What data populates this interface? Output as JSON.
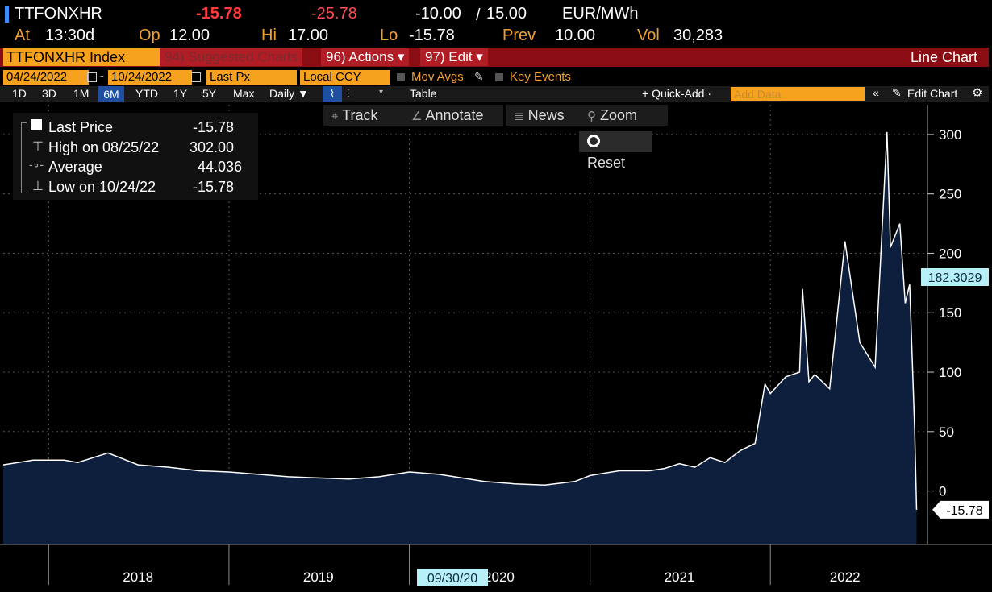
{
  "header": {
    "ticker": "TTFONXHR",
    "last": "-15.78",
    "change": "-25.78",
    "bid_ask": "-10.00",
    "ask": "15.00",
    "units": "EUR/MWh",
    "at_label": "At",
    "at_value": "13:30d",
    "op_label": "Op",
    "op_value": "12.00",
    "hi_label": "Hi",
    "hi_value": "17.00",
    "lo_label": "Lo",
    "lo_value": "-15.78",
    "prev_label": "Prev",
    "prev_value": "10.00",
    "vol_label": "Vol",
    "vol_value": "30,283"
  },
  "function_bar": {
    "security": "TTFONXHR Index",
    "suggested": "94) Suggested Charts",
    "actions": "96) Actions ▾",
    "edit": "97) Edit ▾",
    "chart_type": "Line Chart"
  },
  "settings_row": {
    "start_date": "04/24/2022",
    "end_date": "10/24/2022",
    "field": "Last Px",
    "currency": "Local CCY",
    "mov_avgs": "Mov Avgs",
    "key_events": "Key Events"
  },
  "period_row": {
    "periods": [
      "1D",
      "3D",
      "1M",
      "6M",
      "YTD",
      "1Y",
      "5Y",
      "Max"
    ],
    "active_period": "6M",
    "frequency": "Daily ▼",
    "table": "Table",
    "quick_add": "+ Quick-Add ·",
    "add_data_placeholder": "Add Data",
    "edit_chart": "Edit Chart"
  },
  "toolbar": {
    "track": "Track",
    "annotate": "Annotate",
    "news": "News",
    "zoom": "Zoom",
    "reset": "Reset"
  },
  "legend": {
    "last_price_label": "Last Price",
    "last_price_value": "-15.78",
    "high_label": "High on 08/25/22",
    "high_value": "302.00",
    "average_label": "Average",
    "average_value": "44.036",
    "low_label": "Low on 10/24/22",
    "low_value": "-15.78"
  },
  "colors": {
    "accent_orange": "#f7a21e",
    "bar_red": "#8b0d14",
    "area_fill": "#0d1f3c",
    "line": "#ffffff",
    "tag_cyan": "#b8f0f8"
  },
  "chart_data": {
    "type": "area",
    "series": [
      {
        "name": "Last Price",
        "x": [
          "2017-10",
          "2017-12",
          "2018-02",
          "2018-03",
          "2018-05",
          "2018-07",
          "2018-09",
          "2018-11",
          "2019-01",
          "2019-03",
          "2019-05",
          "2019-07",
          "2019-09",
          "2019-11",
          "2020-01",
          "2020-03",
          "2020-05",
          "2020-06",
          "2020-08",
          "2020-10",
          "2020-12",
          "2021-01",
          "2021-03",
          "2021-05",
          "2021-06",
          "2021-07",
          "2021-08",
          "2021-09",
          "2021-10",
          "2021-11",
          "2021-12",
          "2021-12-21",
          "2022-01",
          "2022-02",
          "2022-03",
          "2022-03-07",
          "2022-03-20",
          "2022-04",
          "2022-05",
          "2022-06",
          "2022-07",
          "2022-08",
          "2022-08-25",
          "2022-09",
          "2022-09-20",
          "2022-10",
          "2022-10-10",
          "2022-10-20",
          "2022-10-24"
        ],
        "y": [
          22,
          26,
          26,
          24,
          32,
          22,
          20,
          17,
          16,
          14,
          12,
          11,
          10,
          12,
          16,
          14,
          10,
          8,
          6,
          5,
          8,
          13,
          17,
          17,
          19,
          23,
          20,
          28,
          24,
          34,
          40,
          90,
          82,
          96,
          100,
          170,
          92,
          98,
          86,
          210,
          125,
          104,
          302,
          205,
          225,
          158,
          174,
          52,
          -15.78
        ]
      }
    ],
    "x_ticks": [
      "2018",
      "2019",
      "2020",
      "2021",
      "2022"
    ],
    "y_ticks": [
      0,
      50,
      100,
      150,
      200,
      250,
      300
    ],
    "ylim": [
      -45,
      325
    ],
    "crosshair_value": "182.3029",
    "crosshair_date": "09/30/20",
    "last_value_tag": "-15.78",
    "grid": true
  }
}
